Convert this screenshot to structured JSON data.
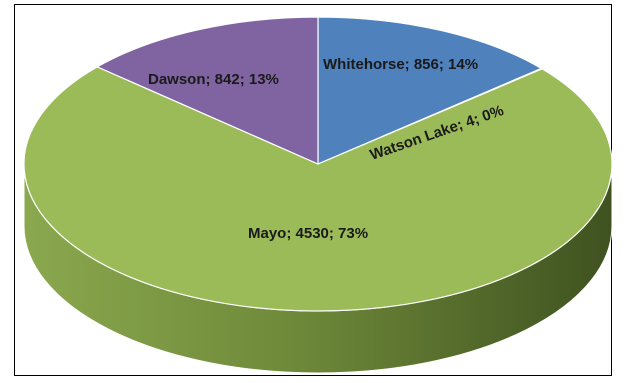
{
  "chart_data": {
    "type": "pie",
    "style": "3d",
    "title": "",
    "legend": "none",
    "slices": [
      {
        "name": "Whitehorse",
        "value": 856,
        "percent": 14,
        "label": "Whitehorse; 856; 14%",
        "color": "#4F81BD"
      },
      {
        "name": "Watson Lake",
        "value": 4,
        "percent": 0,
        "label": "Watson Lake; 4; 0%",
        "color": "#C0504D"
      },
      {
        "name": "Mayo",
        "value": 4530,
        "percent": 73,
        "label": "Mayo; 4530; 73%",
        "color": "#9BBB59"
      },
      {
        "name": "Dawson",
        "value": 842,
        "percent": 13,
        "label": "Dawson; 842; 13%",
        "color": "#8064A2"
      }
    ]
  }
}
